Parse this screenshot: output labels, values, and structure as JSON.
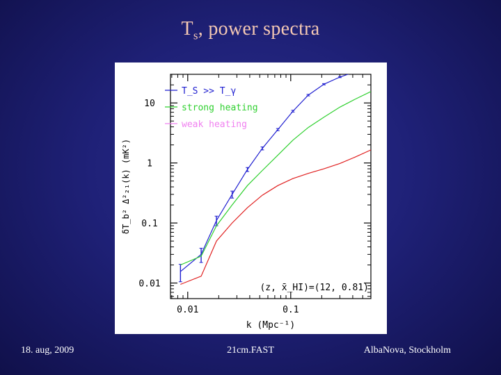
{
  "slide": {
    "title_main": "T",
    "title_sub": "s",
    "title_rest": ", power spectra",
    "footer_left": "18. aug, 2009",
    "footer_center": "21cm.FAST",
    "footer_right": "AlbaNova, Stockholm"
  },
  "chart_data": {
    "type": "line",
    "xlabel": "k (Mpc⁻¹)",
    "ylabel": "δT_b² Δ²₂₁(k) (mK²)",
    "xscale": "log",
    "yscale": "log",
    "xlim": [
      0.0068,
      0.6
    ],
    "ylim": [
      0.0055,
      30
    ],
    "x_ticks": [
      {
        "value": 0.01,
        "label": "0.01"
      },
      {
        "value": 0.1,
        "label": "0.1"
      }
    ],
    "y_ticks": [
      {
        "value": 0.01,
        "label": "0.01"
      },
      {
        "value": 0.1,
        "label": "0.1"
      },
      {
        "value": 1,
        "label": "1"
      },
      {
        "value": 10,
        "label": "10"
      }
    ],
    "legend_position": "top-left",
    "annotation": "(z, x̄_HI)=(12, 0.81)",
    "series": [
      {
        "name": "T_S >> T_γ",
        "color": "#1f1fd0",
        "error_bars": true,
        "x": [
          0.0085,
          0.0135,
          0.019,
          0.027,
          0.038,
          0.053,
          0.075,
          0.105,
          0.148,
          0.21,
          0.3,
          0.42,
          0.55
        ],
        "y": [
          0.0155,
          0.03,
          0.11,
          0.3,
          0.78,
          1.75,
          3.6,
          7.3,
          13.5,
          20.5,
          27,
          33,
          40
        ],
        "err": [
          0.005,
          0.008,
          0.02,
          0.04,
          0.06,
          0.1,
          0.15,
          0.25,
          0.4,
          0.5,
          0.6,
          0.7,
          0.8
        ]
      },
      {
        "name": "strong heating",
        "color": "#2fd02f",
        "x": [
          0.0085,
          0.0135,
          0.019,
          0.027,
          0.038,
          0.053,
          0.075,
          0.105,
          0.148,
          0.21,
          0.3,
          0.42,
          0.6
        ],
        "y": [
          0.02,
          0.028,
          0.09,
          0.2,
          0.42,
          0.75,
          1.35,
          2.4,
          3.9,
          5.8,
          8.5,
          11.5,
          15.5
        ]
      },
      {
        "name": "weak heating",
        "color": "#e02020",
        "legend_color": "#f080f0",
        "x": [
          0.0085,
          0.0135,
          0.019,
          0.027,
          0.038,
          0.053,
          0.075,
          0.105,
          0.148,
          0.21,
          0.3,
          0.42,
          0.6
        ],
        "y": [
          0.0095,
          0.013,
          0.05,
          0.1,
          0.18,
          0.29,
          0.42,
          0.55,
          0.67,
          0.8,
          0.98,
          1.25,
          1.65
        ]
      }
    ]
  }
}
